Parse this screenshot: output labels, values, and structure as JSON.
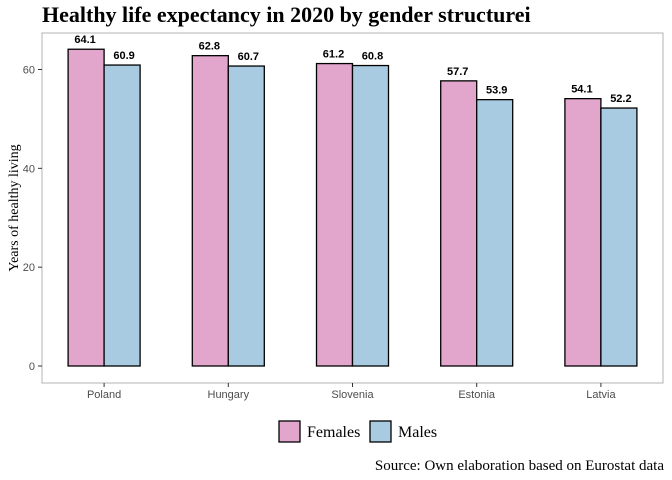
{
  "chart_data": {
    "type": "bar",
    "title": "Healthy life expectancy in 2020 by gender structurei",
    "xlabel": "",
    "ylabel": "Years of healthy living",
    "categories": [
      "Poland",
      "Hungary",
      "Slovenia",
      "Estonia",
      "Latvia"
    ],
    "series": [
      {
        "name": "Females",
        "color": "#e2a6cc",
        "values": [
          64.1,
          62.8,
          61.2,
          57.7,
          54.1
        ]
      },
      {
        "name": "Males",
        "color": "#a8cbe1",
        "values": [
          60.9,
          60.7,
          60.8,
          53.9,
          52.2
        ]
      }
    ],
    "ylim": [
      0,
      68
    ],
    "yticks": [
      0,
      20,
      40,
      60
    ],
    "grid": false,
    "legend_position": "bottom",
    "caption": "Source: Own elaboration based on Eurostat data"
  }
}
